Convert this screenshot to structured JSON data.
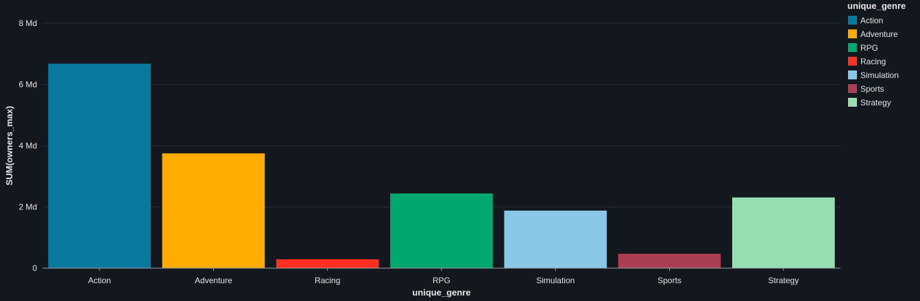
{
  "chart_data": {
    "type": "bar",
    "xlabel": "unique_genre",
    "ylabel": "SUM(owners_max)",
    "ylim": [
      0,
      8000000000
    ],
    "yticks": [
      {
        "value": 0,
        "label": "0"
      },
      {
        "value": 2000000000,
        "label": "2 Md"
      },
      {
        "value": 4000000000,
        "label": "4 Md"
      },
      {
        "value": 6000000000,
        "label": "6 Md"
      },
      {
        "value": 8000000000,
        "label": "8 Md"
      }
    ],
    "grid": true,
    "legend_position": "top-right",
    "legend_title": "unique_genre",
    "categories": [
      "Action",
      "Adventure",
      "Racing",
      "RPG",
      "Simulation",
      "Sports",
      "Strategy"
    ],
    "values": [
      6680000000,
      3750000000,
      290000000,
      2440000000,
      1880000000,
      470000000,
      2310000000
    ],
    "colors": [
      "#0a79a0",
      "#ffab00",
      "#fe3021",
      "#00a870",
      "#8ac7e7",
      "#ab3f52",
      "#99ddb3"
    ],
    "legend": [
      {
        "label": "Action",
        "color": "#0a79a0"
      },
      {
        "label": "Adventure",
        "color": "#ffab00"
      },
      {
        "label": "RPG",
        "color": "#00a870"
      },
      {
        "label": "Racing",
        "color": "#fe3021"
      },
      {
        "label": "Simulation",
        "color": "#8ac7e7"
      },
      {
        "label": "Sports",
        "color": "#ab3f52"
      },
      {
        "label": "Strategy",
        "color": "#99ddb3"
      }
    ]
  },
  "theme": {
    "background": "#13171e",
    "gridline": "#2a2f36",
    "axis": "#9aa0a6",
    "text": "#e6e6e6"
  }
}
